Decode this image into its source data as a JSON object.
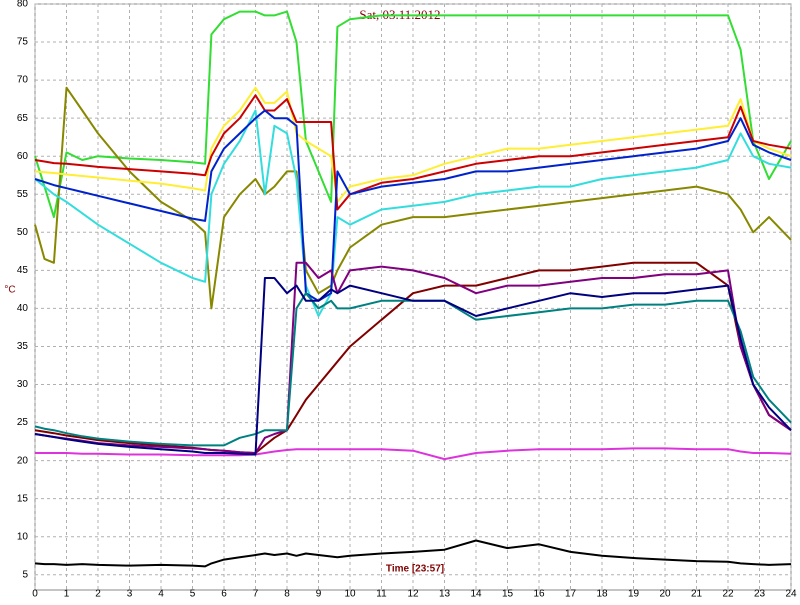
{
  "chart_data": {
    "type": "line",
    "title": "Sat, 03.11.2012",
    "y_label": "°C",
    "x_label": "Time [23:57]",
    "grid": true,
    "xlim": [
      0,
      24
    ],
    "ylim": [
      3,
      80
    ],
    "xticks": [
      0,
      1,
      2,
      3,
      4,
      5,
      6,
      7,
      8,
      9,
      10,
      11,
      12,
      13,
      14,
      15,
      16,
      17,
      18,
      19,
      20,
      21,
      22,
      23,
      24
    ],
    "yticks": [
      5,
      10,
      15,
      20,
      25,
      30,
      35,
      40,
      45,
      50,
      55,
      60,
      65,
      70,
      75,
      80
    ],
    "x": [
      0,
      0.3,
      0.6,
      1,
      1.5,
      2,
      3,
      4,
      5,
      5.4,
      5.6,
      6,
      6.5,
      7,
      7.3,
      7.6,
      8,
      8.3,
      8.6,
      9,
      9.4,
      9.6,
      10,
      11,
      12,
      13,
      14,
      15,
      16,
      17,
      18,
      19,
      20,
      21,
      22,
      22.4,
      22.8,
      23.3,
      24
    ],
    "series": [
      {
        "color": "#33dd33",
        "values": [
          60,
          56,
          52,
          60.5,
          59.5,
          60,
          59.7,
          59.5,
          59.2,
          59,
          76,
          78,
          79,
          79,
          78.5,
          78.5,
          79,
          75,
          62,
          58,
          54,
          77,
          78,
          78.5,
          78.5,
          78.5,
          78.5,
          78.5,
          78.5,
          78.5,
          78.5,
          78.5,
          78.5,
          78.5,
          78.5,
          74,
          62,
          57,
          62
        ]
      },
      {
        "color": "#888800",
        "values": [
          51,
          46.5,
          46,
          69,
          66,
          63,
          58,
          54,
          51.5,
          50,
          40,
          52,
          55,
          57,
          55,
          56,
          58,
          58,
          45,
          42,
          43,
          45,
          48,
          51,
          52,
          52,
          52.5,
          53,
          53.5,
          54,
          54.5,
          55,
          55.5,
          56,
          55,
          53,
          50,
          52,
          49
        ]
      },
      {
        "color": "#33dddd",
        "values": [
          57,
          56,
          55,
          54,
          52.5,
          51,
          48.5,
          46,
          44,
          43.5,
          55,
          59,
          62,
          66,
          55,
          64,
          63,
          57,
          43,
          39,
          42,
          52,
          51,
          53,
          53.5,
          54,
          55,
          55.5,
          56,
          56,
          57,
          57.5,
          58,
          58.5,
          59.5,
          63,
          60,
          59,
          58.5
        ]
      },
      {
        "color": "#ffee33",
        "values": [
          58,
          57.9,
          57.8,
          57.6,
          57.4,
          57.2,
          56.8,
          56.4,
          55.8,
          55.5,
          61,
          64,
          66,
          69,
          67,
          67,
          68.5,
          63,
          62,
          61,
          60,
          54,
          56,
          57,
          57.5,
          59,
          60,
          61,
          61,
          61.5,
          62,
          62.5,
          63,
          63.5,
          64,
          67.5,
          62,
          61,
          60
        ]
      },
      {
        "color": "#cc0000",
        "values": [
          59.5,
          59.3,
          59.1,
          59,
          58.8,
          58.6,
          58.3,
          58,
          57.7,
          57.5,
          60,
          63,
          65,
          68,
          66,
          66,
          67.5,
          64.5,
          64.5,
          64.5,
          64.5,
          53,
          55,
          56.5,
          57,
          58,
          59,
          59.5,
          60,
          60,
          60.5,
          61,
          61.5,
          62,
          62.5,
          66.5,
          62,
          61.5,
          61
        ]
      },
      {
        "color": "#0022cc",
        "values": [
          57,
          56.6,
          56.2,
          55.8,
          55.3,
          54.8,
          53.8,
          52.8,
          51.8,
          51.5,
          58,
          61,
          63,
          65,
          66,
          65,
          65,
          64,
          42,
          41,
          42,
          58,
          55,
          56,
          56.5,
          57,
          58,
          58,
          58.5,
          59,
          59.5,
          60,
          60.5,
          61,
          62,
          65,
          61.5,
          60.5,
          59.5
        ]
      },
      {
        "color": "#dd33dd",
        "values": [
          21,
          21,
          21,
          21,
          20.9,
          20.9,
          20.8,
          20.8,
          20.7,
          20.7,
          20.7,
          20.7,
          20.7,
          20.8,
          21,
          21.2,
          21.4,
          21.5,
          21.5,
          21.5,
          21.5,
          21.5,
          21.5,
          21.5,
          21.3,
          20.2,
          21,
          21.3,
          21.5,
          21.5,
          21.5,
          21.6,
          21.6,
          21.5,
          21.5,
          21.2,
          21,
          21,
          20.9
        ]
      },
      {
        "color": "#000000",
        "values": [
          6.5,
          6.4,
          6.4,
          6.3,
          6.4,
          6.3,
          6.2,
          6.3,
          6.2,
          6.1,
          6.5,
          7,
          7.3,
          7.6,
          7.8,
          7.6,
          7.8,
          7.5,
          7.8,
          7.6,
          7.4,
          7.3,
          7.5,
          7.8,
          8,
          8.3,
          9.5,
          8.5,
          9,
          8,
          7.5,
          7.2,
          7,
          6.8,
          6.7,
          6.5,
          6.4,
          6.3,
          6.4
        ]
      },
      {
        "color": "#800000",
        "values": [
          24,
          23.8,
          23.6,
          23.3,
          23,
          22.7,
          22.3,
          22,
          21.7,
          21.5,
          21.4,
          21.3,
          21.1,
          21,
          22,
          23,
          24,
          26,
          28,
          30,
          32,
          33,
          35,
          38.5,
          42,
          43,
          43,
          44,
          45,
          45,
          45.5,
          46,
          46,
          46,
          43,
          35,
          30,
          26,
          24
        ]
      },
      {
        "color": "#800080",
        "values": [
          23.5,
          23.3,
          23.1,
          22.9,
          22.6,
          22.3,
          22,
          21.8,
          21.6,
          21.5,
          21.4,
          21.3,
          21.1,
          21,
          23,
          23.5,
          24,
          46,
          46,
          44,
          45,
          42,
          45,
          45.5,
          45,
          44,
          42,
          43,
          43,
          43.5,
          44,
          44,
          44.5,
          44.5,
          45,
          35,
          30,
          26,
          24
        ]
      },
      {
        "color": "#008080",
        "values": [
          24.5,
          24.2,
          24,
          23.6,
          23.2,
          22.9,
          22.5,
          22.2,
          22,
          22,
          22,
          22,
          23,
          23.5,
          24,
          24,
          24,
          40,
          42,
          40,
          41,
          40,
          40,
          41,
          41,
          41,
          38.5,
          39,
          39.5,
          40,
          40,
          40.5,
          40.5,
          41,
          41,
          37,
          31,
          28,
          25
        ]
      },
      {
        "color": "#000080",
        "values": [
          23.5,
          23.3,
          23.1,
          22.8,
          22.5,
          22.2,
          21.8,
          21.5,
          21.2,
          21,
          21,
          21,
          20.9,
          20.8,
          44,
          44,
          42,
          43,
          41,
          41,
          42.5,
          42,
          43,
          42,
          41,
          41,
          39,
          40,
          41,
          42,
          41.5,
          42,
          42,
          42.5,
          43,
          36,
          30,
          27,
          24
        ]
      }
    ]
  }
}
